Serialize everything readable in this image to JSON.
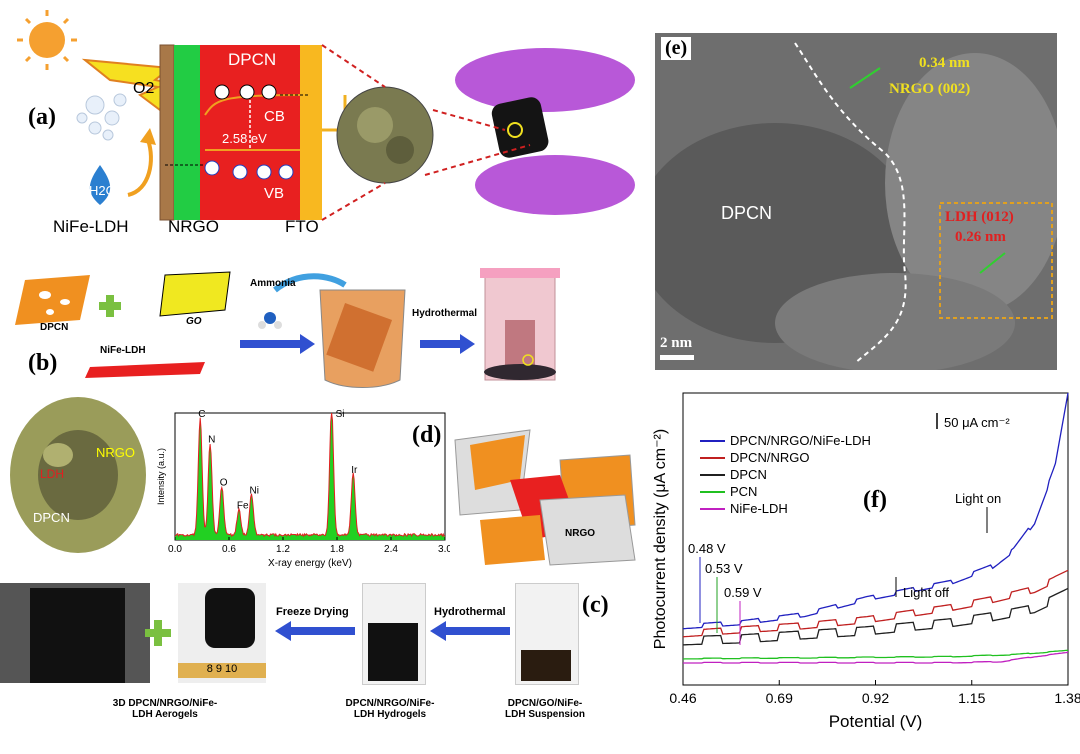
{
  "panel_labels": {
    "a": "(a)",
    "b": "(b)",
    "c": "(c)",
    "d": "(d)",
    "e": "(e)",
    "f": "(f)"
  },
  "panel_a": {
    "o2": "O2",
    "h2o": "H2O",
    "nife": "NiFe-LDH",
    "nrgo": "NRGO",
    "fto": "FTO",
    "dpcn": "DPCN",
    "cb": "CB",
    "vb": "VB",
    "gap": "2.58 eV"
  },
  "panel_b": {
    "dpcn": "DPCN",
    "go": "GO",
    "nife": "NiFe-LDH",
    "ammonia": "Ammonia",
    "hydrothermal": "Hydrothermal",
    "nrgo": "NRGO"
  },
  "sem": {
    "nrgo": "NRGO",
    "ldh": "LDH",
    "dpcn": "DPCN"
  },
  "panel_c": {
    "aerogel": "3D DPCN/NRGO/NiFe-\nLDH Aerogels",
    "hydrogel": "DPCN/NRGO/NiFe-\nLDH Hydrogels",
    "suspension": "DPCN/GO/NiFe-\nLDH Suspension",
    "freeze": "Freeze Drying",
    "hydrothermal": "Hydrothermal",
    "ruler": "8  9  10"
  },
  "panel_e": {
    "dpcn": "DPCN",
    "nrgo_spacing": "0.34 nm",
    "nrgo_plane": "NRGO (002)",
    "ldh_plane": "LDH (012)",
    "ldh_spacing": "0.26 nm",
    "scale": "2 nm"
  },
  "chart_data": [
    {
      "type": "area",
      "id": "edx",
      "xlabel": "X-ray energy (keV)",
      "ylabel": "Intensity (a.u.)",
      "xlim": [
        0,
        3.0
      ],
      "xticks": [
        "0.0",
        "0.6",
        "1.2",
        "1.8",
        "2.4",
        "3.0"
      ],
      "peaks": [
        {
          "label": "C",
          "x": 0.28,
          "h": 0.92
        },
        {
          "label": "N",
          "x": 0.39,
          "h": 0.72
        },
        {
          "label": "O",
          "x": 0.52,
          "h": 0.38
        },
        {
          "label": "Fe",
          "x": 0.71,
          "h": 0.2
        },
        {
          "label": "Ni",
          "x": 0.85,
          "h": 0.32
        },
        {
          "label": "Si",
          "x": 1.74,
          "h": 1.0
        },
        {
          "label": "Ir",
          "x": 1.98,
          "h": 0.48
        }
      ],
      "fill_color": "#22d022",
      "line_color": "#e02020"
    },
    {
      "type": "line",
      "id": "photocurrent",
      "xlabel": "Potential (V)",
      "ylabel": "Photocurrent density (μA cm⁻²)",
      "xlim": [
        0.46,
        1.38
      ],
      "xticks": [
        "0.46",
        "0.69",
        "0.92",
        "1.15",
        "1.38"
      ],
      "scale_bar": "50 μA cm⁻²",
      "annotations": {
        "light_on": "Light on",
        "light_off": "Light off",
        "v1": "0.48 V",
        "v2": "0.53 V",
        "v3": "0.59 V"
      },
      "series": [
        {
          "name": "DPCN/NRGO/NiFe-LDH",
          "color": "#2020c0",
          "x": [
            0.46,
            0.6,
            0.75,
            0.9,
            1.0,
            1.1,
            1.2,
            1.25,
            1.3,
            1.35,
            1.38
          ],
          "y": [
            0.1,
            0.12,
            0.16,
            0.24,
            0.28,
            0.32,
            0.4,
            0.48,
            0.62,
            0.9,
            1.25
          ]
        },
        {
          "name": "DPCN/NRGO",
          "color": "#c02020",
          "x": [
            0.46,
            0.6,
            0.75,
            0.9,
            1.0,
            1.1,
            1.2,
            1.3,
            1.38
          ],
          "y": [
            0.06,
            0.08,
            0.1,
            0.13,
            0.16,
            0.19,
            0.23,
            0.28,
            0.36
          ]
        },
        {
          "name": "DPCN",
          "color": "#202020",
          "x": [
            0.46,
            0.6,
            0.75,
            0.9,
            1.0,
            1.1,
            1.2,
            1.3,
            1.38
          ],
          "y": [
            0.02,
            0.03,
            0.05,
            0.07,
            0.09,
            0.11,
            0.14,
            0.18,
            0.26
          ]
        },
        {
          "name": "PCN",
          "color": "#20c020",
          "x": [
            0.46,
            0.8,
            1.1,
            1.25,
            1.38
          ],
          "y": [
            -0.05,
            -0.045,
            -0.04,
            -0.03,
            -0.01
          ]
        },
        {
          "name": "NiFe-LDH",
          "color": "#c020c0",
          "x": [
            0.46,
            0.8,
            1.1,
            1.22,
            1.3,
            1.38
          ],
          "y": [
            -0.07,
            -0.07,
            -0.07,
            -0.065,
            -0.04,
            -0.02
          ]
        }
      ]
    }
  ]
}
